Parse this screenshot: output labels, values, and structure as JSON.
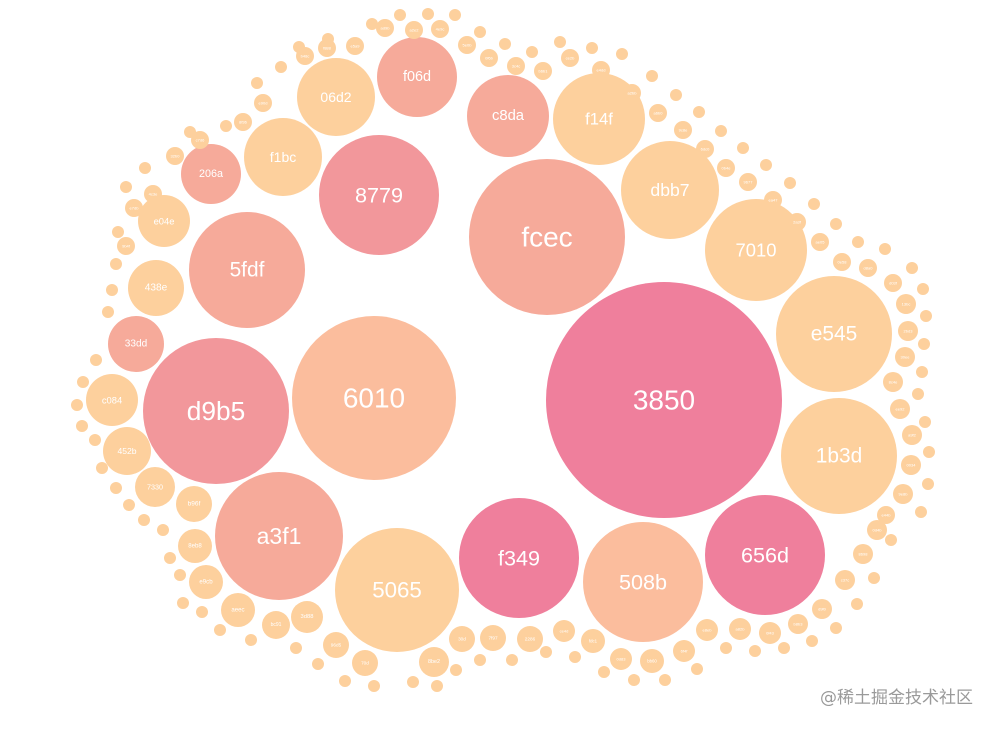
{
  "chart_data": {
    "type": "bubble-pack",
    "title": "",
    "colors": {
      "deep_pink": "#ef7f9c",
      "pink": "#f2979b",
      "salmon": "#f6aa9a",
      "peach": "#fbbd9d",
      "light_peach": "#fdd09d"
    },
    "bubbles": [
      {
        "label": "6010",
        "color": "peach"
      },
      {
        "label": "3850",
        "color": "deep_pink"
      },
      {
        "label": "fcec",
        "color": "salmon"
      },
      {
        "label": "8779",
        "color": "pink"
      },
      {
        "label": "5fdf",
        "color": "salmon"
      },
      {
        "label": "d9b5",
        "color": "pink"
      },
      {
        "label": "a3f1",
        "color": "salmon"
      },
      {
        "label": "5065",
        "color": "light_peach"
      },
      {
        "label": "f349",
        "color": "deep_pink"
      },
      {
        "label": "508b",
        "color": "peach"
      },
      {
        "label": "656d",
        "color": "deep_pink"
      },
      {
        "label": "1b3d",
        "color": "light_peach"
      },
      {
        "label": "e545",
        "color": "light_peach"
      },
      {
        "label": "7010",
        "color": "light_peach"
      },
      {
        "label": "dbb7",
        "color": "light_peach"
      },
      {
        "label": "f14f",
        "color": "light_peach"
      },
      {
        "label": "c8da",
        "color": "salmon"
      },
      {
        "label": "f06d",
        "color": "salmon"
      },
      {
        "label": "06d2",
        "color": "light_peach"
      },
      {
        "label": "f1bc",
        "color": "light_peach"
      },
      {
        "label": "206a",
        "color": "salmon"
      },
      {
        "label": "e04e",
        "color": "light_peach"
      },
      {
        "label": "438e",
        "color": "light_peach"
      },
      {
        "label": "33dd",
        "color": "salmon"
      },
      {
        "label": "c084",
        "color": "light_peach"
      },
      {
        "label": "452b",
        "color": "light_peach"
      },
      {
        "label": "7330",
        "color": "light_peach"
      },
      {
        "label": "b96f",
        "color": "light_peach"
      },
      {
        "label": "8eb8",
        "color": "light_peach"
      },
      {
        "label": "e9cb",
        "color": "light_peach"
      },
      {
        "label": "aeec",
        "color": "light_peach"
      },
      {
        "label": "bc91",
        "color": "light_peach"
      },
      {
        "label": "3d88",
        "color": "light_peach"
      },
      {
        "label": "96d5",
        "color": "light_peach"
      },
      {
        "label": "70d",
        "color": "light_peach"
      },
      {
        "label": "8be2",
        "color": "light_peach"
      },
      {
        "label": "30d",
        "color": "light_peach"
      },
      {
        "label": "7f97",
        "color": "light_peach"
      },
      {
        "label": "2286",
        "color": "light_peach"
      },
      {
        "label": "ce4d",
        "color": "light_peach"
      },
      {
        "label": "fdc1",
        "color": "light_peach"
      },
      {
        "label": "0d83",
        "color": "light_peach"
      },
      {
        "label": "bb60",
        "color": "light_peach"
      },
      {
        "label": "6f4f",
        "color": "light_peach"
      },
      {
        "label": "e8eb",
        "color": "light_peach"
      },
      {
        "label": "a82b",
        "color": "light_peach"
      },
      {
        "label": "0f43",
        "color": "light_peach"
      },
      {
        "label": "b8b3",
        "color": "light_peach"
      },
      {
        "label": "d9f0",
        "color": "light_peach"
      },
      {
        "label": "c37c",
        "color": "light_peach"
      },
      {
        "label": "8698",
        "color": "light_peach"
      },
      {
        "label": "0d4b",
        "color": "light_peach"
      },
      {
        "label": "e44b",
        "color": "light_peach"
      },
      {
        "label": "9e8b",
        "color": "light_peach"
      },
      {
        "label": "0034",
        "color": "light_peach"
      },
      {
        "label": "a9f2",
        "color": "light_peach"
      },
      {
        "label": "ee92",
        "color": "light_peach"
      },
      {
        "label": "8c4e",
        "color": "light_peach"
      },
      {
        "label": "30ee",
        "color": "light_peach"
      },
      {
        "label": "2bd3",
        "color": "light_peach"
      },
      {
        "label": "13bc",
        "color": "light_peach"
      },
      {
        "label": "d03f",
        "color": "light_peach"
      },
      {
        "label": "d8a0",
        "color": "light_peach"
      },
      {
        "label": "0e58",
        "color": "light_peach"
      },
      {
        "label": "ae05",
        "color": "light_peach"
      },
      {
        "label": "2a3f",
        "color": "light_peach"
      },
      {
        "label": "ea47",
        "color": "light_peach"
      },
      {
        "label": "9677",
        "color": "light_peach"
      },
      {
        "label": "0b4e",
        "color": "light_peach"
      },
      {
        "label": "6dc0",
        "color": "light_peach"
      },
      {
        "label": "9c8e",
        "color": "light_peach"
      },
      {
        "label": "a6b0",
        "color": "light_peach"
      },
      {
        "label": "a2bb",
        "color": "light_peach"
      },
      {
        "label": "e4dd",
        "color": "light_peach"
      },
      {
        "label": "ce2b",
        "color": "light_peach"
      },
      {
        "label": "b6b1",
        "color": "light_peach"
      },
      {
        "label": "3c4c",
        "color": "light_peach"
      },
      {
        "label": "0f6b",
        "color": "light_peach"
      },
      {
        "label": "5e0b",
        "color": "light_peach"
      },
      {
        "label": "4e9c",
        "color": "light_peach"
      },
      {
        "label": "a2e2",
        "color": "light_peach"
      },
      {
        "label": "ad9b",
        "color": "light_peach"
      },
      {
        "label": "e5a9",
        "color": "light_peach"
      },
      {
        "label": "f888",
        "color": "light_peach"
      },
      {
        "label": "b48c",
        "color": "light_peach"
      },
      {
        "label": "e90d",
        "color": "light_peach"
      },
      {
        "label": "8f36",
        "color": "light_peach"
      },
      {
        "label": "c7d6",
        "color": "light_peach"
      },
      {
        "label": "32b0",
        "color": "light_peach"
      },
      {
        "label": "4c3e",
        "color": "light_peach"
      },
      {
        "label": "e7db",
        "color": "light_peach"
      },
      {
        "label": "9b4f",
        "color": "light_peach"
      }
    ]
  },
  "watermark": "@稀土掘金技术社区"
}
